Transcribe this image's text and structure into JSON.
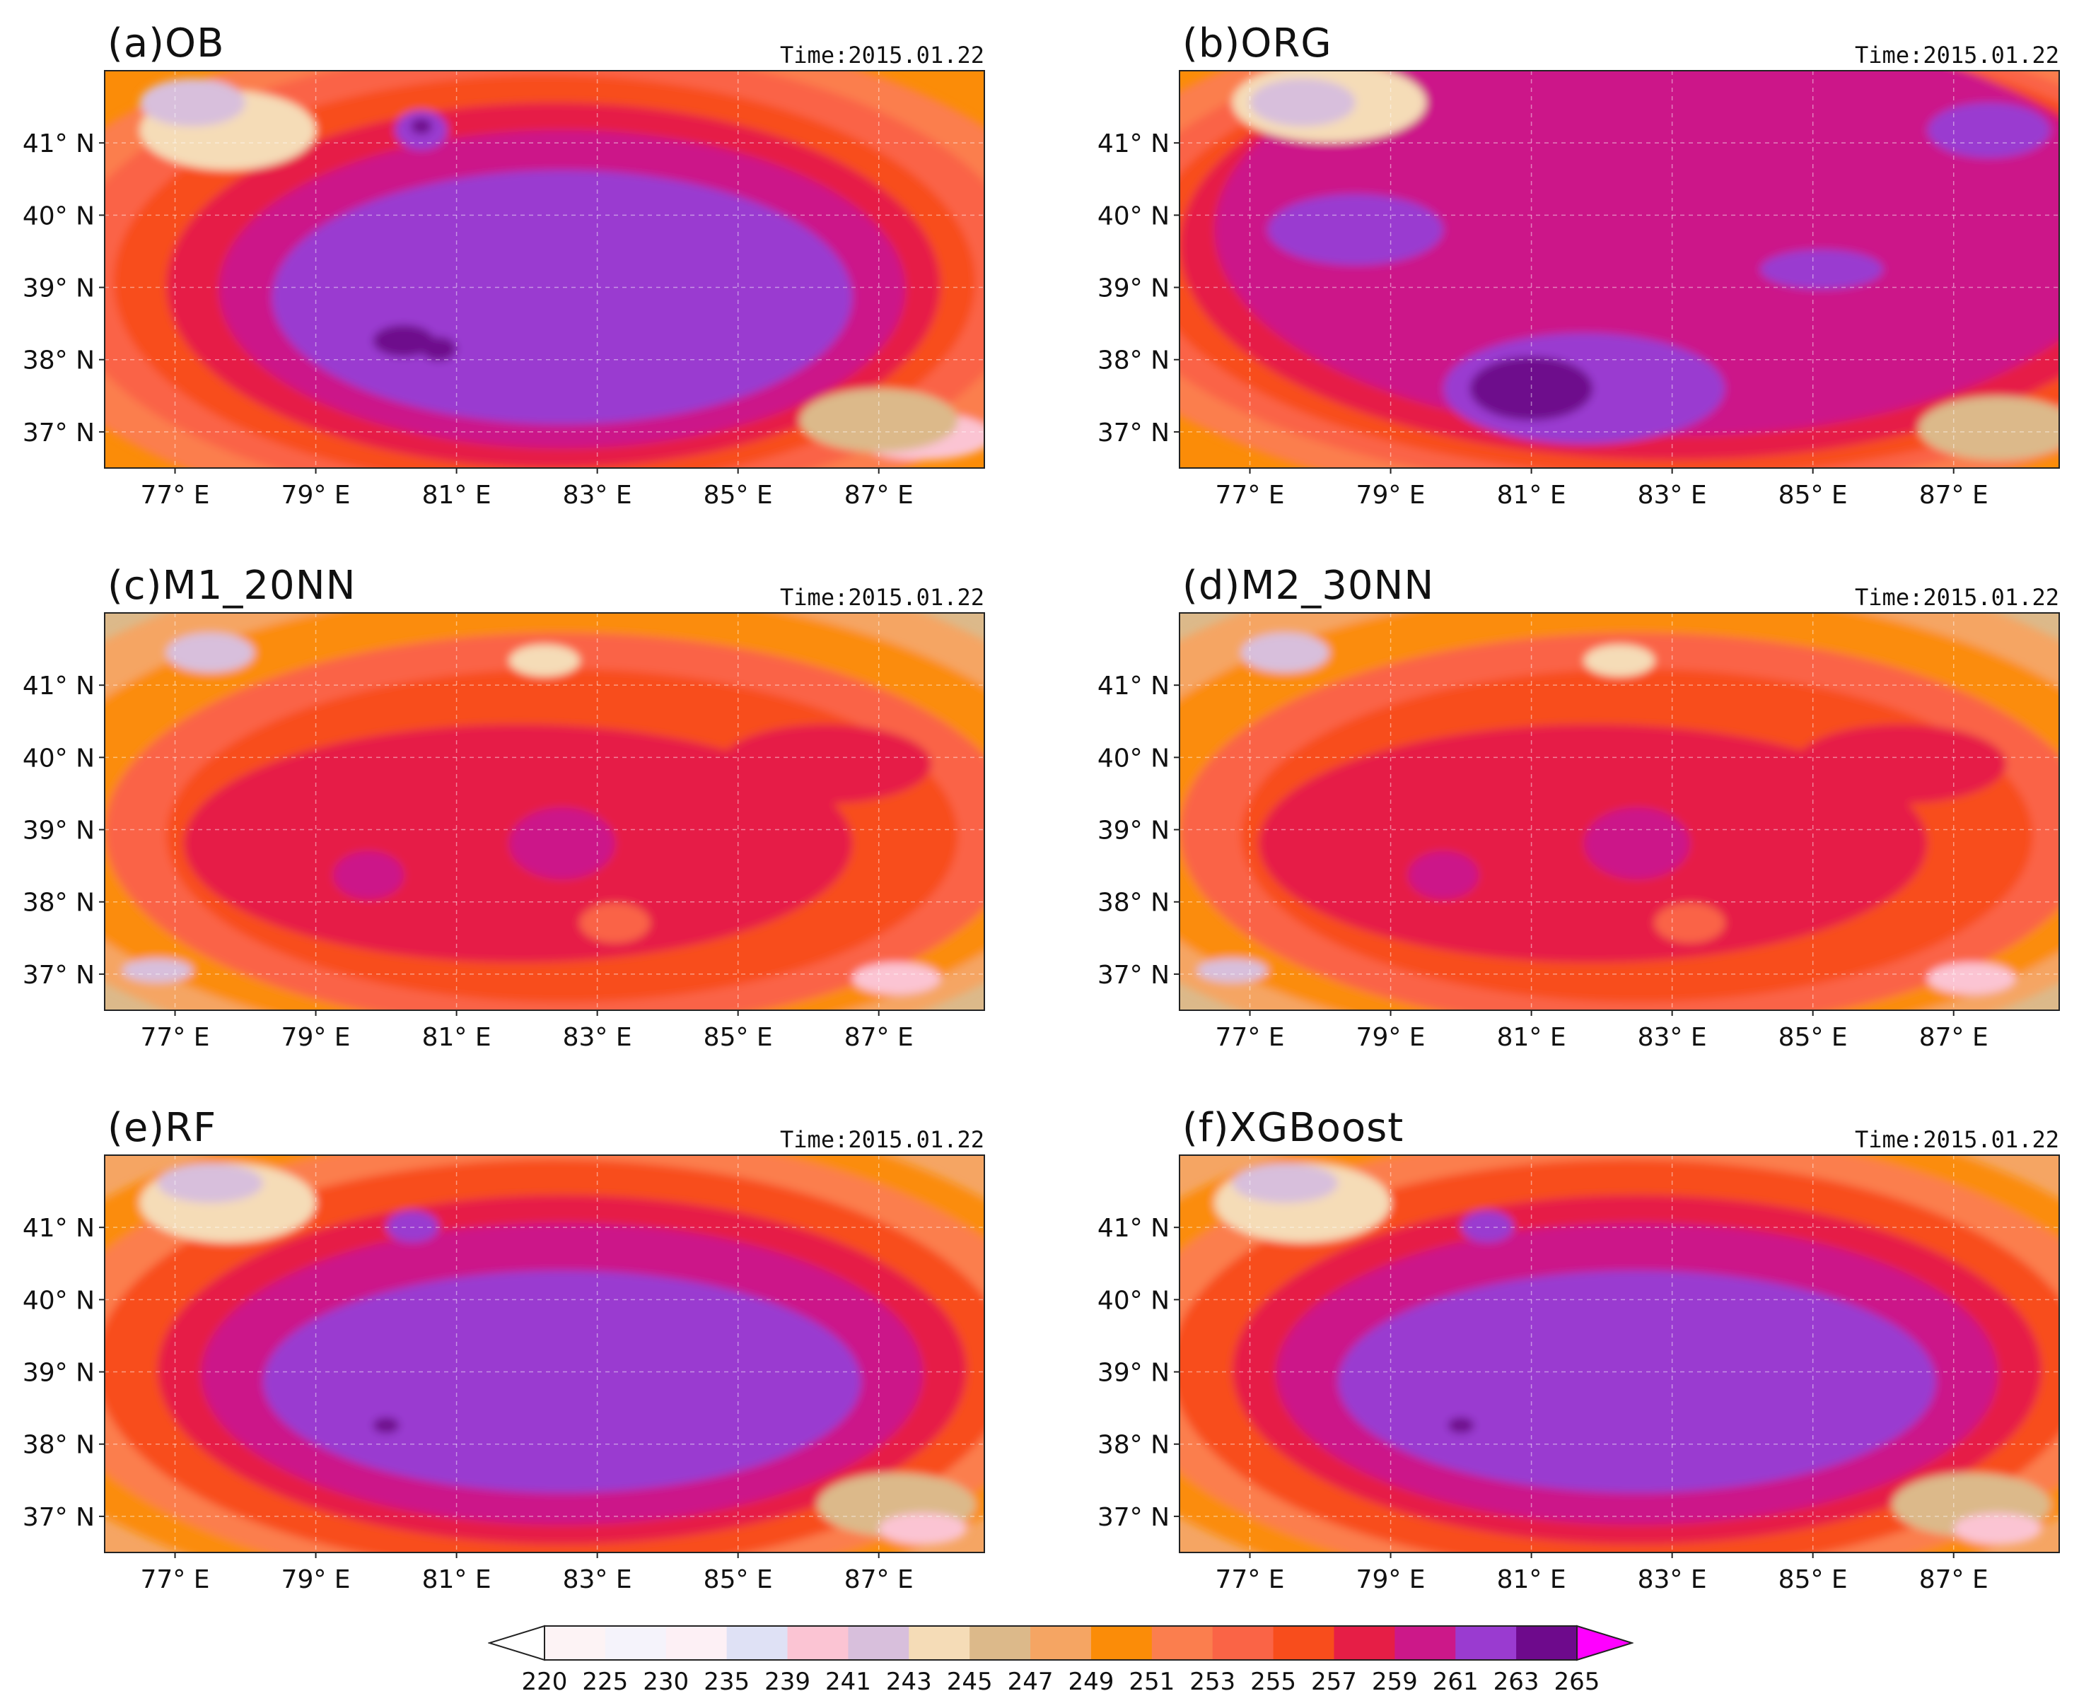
{
  "figure": {
    "panels": [
      {
        "id": "a",
        "title": "(a)OB",
        "time": "Time:2015.01.22",
        "pattern": "ob"
      },
      {
        "id": "b",
        "title": "(b)ORG",
        "time": "Time:2015.01.22",
        "pattern": "org"
      },
      {
        "id": "c",
        "title": "(c)M1_20NN",
        "time": "Time:2015.01.22",
        "pattern": "nn"
      },
      {
        "id": "d",
        "title": "(d)M2_30NN",
        "time": "Time:2015.01.22",
        "pattern": "nn"
      },
      {
        "id": "e",
        "title": "(e)RF",
        "time": "Time:2015.01.22",
        "pattern": "rf"
      },
      {
        "id": "f",
        "title": "(f)XGBoost",
        "time": "Time:2015.01.22",
        "pattern": "rf"
      }
    ],
    "lat_ticks": [
      "41° N",
      "40° N",
      "39° N",
      "38° N",
      "37° N"
    ],
    "lon_ticks": [
      "77° E",
      "79° E",
      "81° E",
      "83° E",
      "85° E",
      "87° E"
    ],
    "colorbar": {
      "levels": [
        "220",
        "225",
        "230",
        "235",
        "239",
        "241",
        "243",
        "245",
        "247",
        "249",
        "251",
        "253",
        "255",
        "257",
        "259",
        "261",
        "263",
        "265"
      ],
      "colors": [
        "#fdf3f5",
        "#f5f3fb",
        "#fdf0f5",
        "#dfe1f5",
        "#fbc4d3",
        "#d8bfdc",
        "#f5dcb7",
        "#dcb98a",
        "#f5a563",
        "#fb8c08",
        "#fb7e4e",
        "#fa6446",
        "#f84d1c",
        "#e61e46",
        "#cc1889",
        "#9a3bd0",
        "#6e0a8c"
      ],
      "under_color": "#ffffff",
      "over_color": "#ff00ff"
    }
  }
}
